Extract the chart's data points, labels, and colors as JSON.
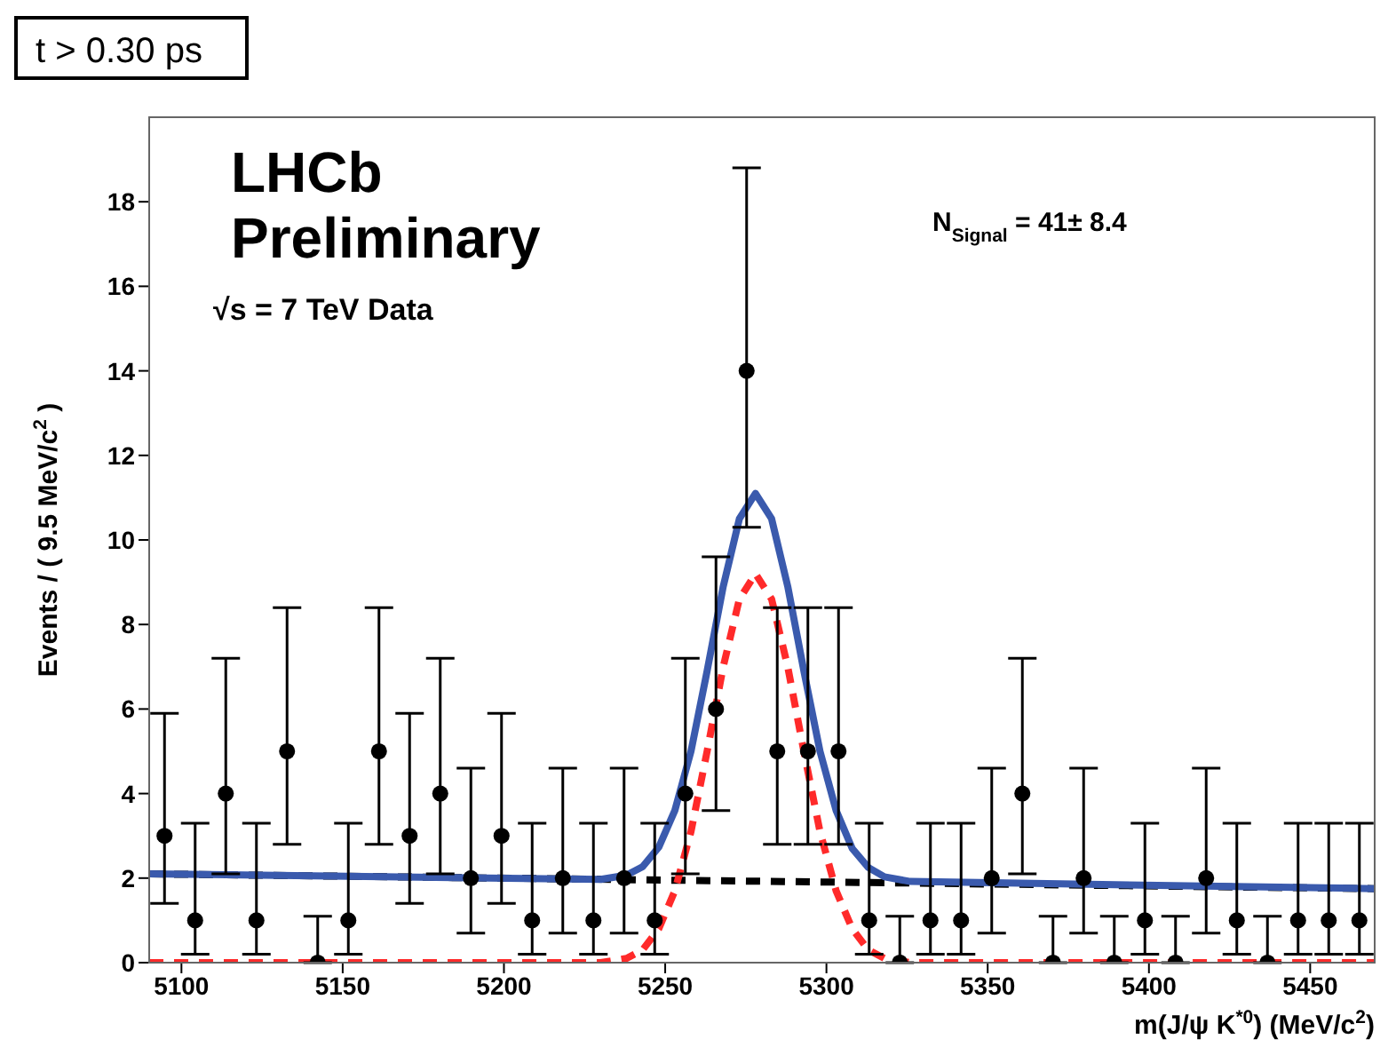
{
  "chart_data": {
    "type": "line",
    "xlabel": "m(J/ψ K$^{*0}$) (MeV/c$^{2}$)",
    "ylabel": "Events / ( 9.5 MeV/c$^{2}$ )",
    "annotations": [
      "t > 0.30 ps",
      "LHCb",
      "Preliminary",
      "√s = 7 TeV Data",
      "N$_{Signal}$ = 41± 8.4"
    ],
    "xlim": [
      5090,
      5470
    ],
    "xticks": [
      5100,
      5150,
      5200,
      5250,
      5300,
      5350,
      5400,
      5450
    ],
    "ylim": [
      0,
      20
    ],
    "yticks": [
      0,
      2,
      4,
      6,
      8,
      10,
      12,
      14,
      16,
      18
    ],
    "grid": false,
    "legend": false,
    "series": [
      {
        "color": "#000000",
        "line_style": "dashed",
        "x": [
          5090,
          5470
        ],
        "values": [
          2.1,
          1.75
        ]
      },
      {
        "color": "#3a5aad",
        "line_style": "solid",
        "x": [
          5090,
          5230,
          5238,
          5243,
          5248,
          5253,
          5258,
          5263,
          5268,
          5273,
          5278,
          5283,
          5288,
          5293,
          5298,
          5303,
          5308,
          5313,
          5318,
          5326,
          5470
        ],
        "values": [
          2.1,
          1.97,
          2.07,
          2.27,
          2.73,
          3.6,
          5.0,
          6.9,
          8.9,
          10.5,
          11.1,
          10.5,
          8.9,
          6.9,
          5.0,
          3.6,
          2.7,
          2.25,
          2.03,
          1.92,
          1.75
        ]
      },
      {
        "color": "#ff2a2a",
        "line_style": "dashed",
        "x": [
          5090,
          5230,
          5238,
          5243,
          5248,
          5253,
          5258,
          5263,
          5268,
          5273,
          5278,
          5283,
          5288,
          5293,
          5298,
          5303,
          5308,
          5313,
          5318,
          5326,
          5470
        ],
        "values": [
          0,
          0,
          0.1,
          0.3,
          0.8,
          1.7,
          3.1,
          5.0,
          7.0,
          8.6,
          9.2,
          8.6,
          7.0,
          5.0,
          3.1,
          1.7,
          0.8,
          0.3,
          0.1,
          0,
          0
        ]
      },
      {
        "type": "scatter",
        "color": "#000000",
        "marker": "circle",
        "x": [
          5094.75,
          5104.25,
          5113.75,
          5123.25,
          5132.75,
          5142.25,
          5151.75,
          5161.25,
          5170.75,
          5180.25,
          5189.75,
          5199.25,
          5208.75,
          5218.25,
          5227.75,
          5237.25,
          5246.75,
          5256.25,
          5265.75,
          5275.25,
          5284.75,
          5294.25,
          5303.75,
          5313.25,
          5322.75,
          5332.25,
          5341.75,
          5351.25,
          5360.75,
          5370.25,
          5379.75,
          5389.25,
          5398.75,
          5408.25,
          5417.75,
          5427.25,
          5436.75,
          5446.25,
          5455.75,
          5465.25
        ],
        "values": [
          3,
          1,
          4,
          1,
          5,
          0,
          1,
          5,
          3,
          4,
          2,
          3,
          1,
          2,
          1,
          2,
          1,
          4,
          6,
          14,
          5,
          5,
          5,
          1,
          0,
          1,
          1,
          2,
          4,
          0,
          2,
          0,
          1,
          0,
          2,
          1,
          0,
          1,
          1,
          1
        ],
        "errors": [
          [
            1.4,
            5.9
          ],
          [
            0.2,
            3.3
          ],
          [
            2.1,
            7.2
          ],
          [
            0.2,
            3.3
          ],
          [
            2.8,
            8.4
          ],
          [
            0,
            1.1
          ],
          [
            0.2,
            3.3
          ],
          [
            2.8,
            8.4
          ],
          [
            1.4,
            5.9
          ],
          [
            2.1,
            7.2
          ],
          [
            0.7,
            4.6
          ],
          [
            1.4,
            5.9
          ],
          [
            0.2,
            3.3
          ],
          [
            0.7,
            4.6
          ],
          [
            0.2,
            3.3
          ],
          [
            0.7,
            4.6
          ],
          [
            0.2,
            3.3
          ],
          [
            2.1,
            7.2
          ],
          [
            3.6,
            9.6
          ],
          [
            10.3,
            18.8
          ],
          [
            2.8,
            8.4
          ],
          [
            2.8,
            8.4
          ],
          [
            2.8,
            8.4
          ],
          [
            0.2,
            3.3
          ],
          [
            0,
            1.1
          ],
          [
            0.2,
            3.3
          ],
          [
            0.2,
            3.3
          ],
          [
            0.7,
            4.6
          ],
          [
            2.1,
            7.2
          ],
          [
            0,
            1.1
          ],
          [
            0.7,
            4.6
          ],
          [
            0,
            1.1
          ],
          [
            0.2,
            3.3
          ],
          [
            0,
            1.1
          ],
          [
            0.7,
            4.6
          ],
          [
            0.2,
            3.3
          ],
          [
            0,
            1.1
          ],
          [
            0.2,
            3.3
          ],
          [
            0.2,
            3.3
          ],
          [
            0.2,
            3.3
          ]
        ]
      }
    ]
  }
}
